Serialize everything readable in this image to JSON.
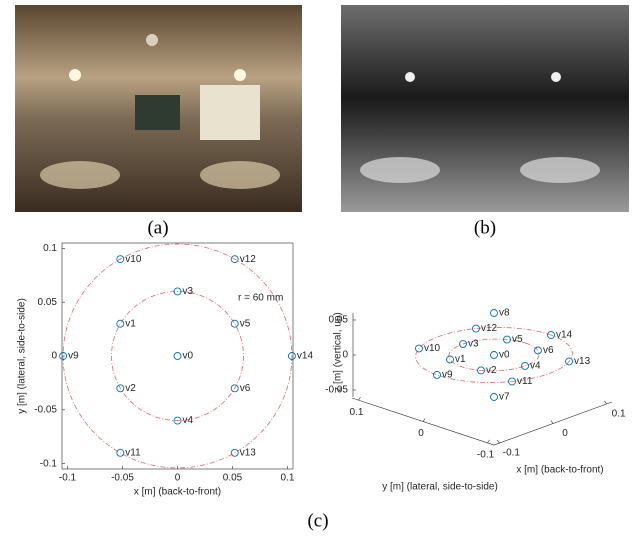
{
  "figure": {
    "panels": [
      {
        "label": "(a)"
      },
      {
        "label": "(b)"
      }
    ],
    "caption": "(c)"
  },
  "chart_data": [
    {
      "type": "scatter",
      "xlabel": "x [m] (back-to-front)",
      "ylabel": "y [m] (lateral, side-to-side)",
      "annotation": "r = 60 mm",
      "x": [
        0,
        -0.052,
        -0.052,
        0,
        0,
        0.052,
        0.052,
        -0.104,
        -0.052,
        -0.052,
        0.052,
        0.052,
        0.104
      ],
      "y": [
        0,
        0.03,
        -0.03,
        0.06,
        -0.06,
        0.03,
        -0.03,
        0,
        0.09,
        -0.09,
        0.09,
        -0.09,
        0
      ],
      "point_labels": [
        "v0",
        "v1",
        "v2",
        "v3",
        "v4",
        "v5",
        "v6",
        "v9",
        "v10",
        "v11",
        "v12",
        "v13",
        "v14"
      ],
      "color": "#0072bd",
      "circle_radii": [
        0.06,
        0.104
      ],
      "circle_color": "#e06666",
      "xlim": [
        -0.105,
        0.105
      ],
      "ylim": [
        -0.105,
        0.105
      ],
      "xticks": [
        -0.1,
        -0.05,
        0,
        0.05,
        0.1
      ],
      "yticks": [
        -0.1,
        -0.05,
        0,
        0.05,
        0.1
      ]
    },
    {
      "type": "scatter3d",
      "xlabel": "x [m] (back-to-front)",
      "ylabel": "y [m] (lateral, side-to-side)",
      "zlabel": "z [m] (vertical, up)",
      "x": [
        0,
        -0.052,
        -0.052,
        0,
        0,
        0.052,
        0.052,
        0,
        0,
        -0.104,
        -0.052,
        -0.052,
        0.052,
        0.052,
        0.104
      ],
      "y": [
        0,
        0.03,
        -0.03,
        0.06,
        -0.06,
        0.03,
        -0.03,
        0,
        0,
        0,
        0.09,
        -0.09,
        0.09,
        -0.09,
        0
      ],
      "z": [
        0,
        0,
        0,
        0,
        0,
        0,
        0,
        -0.06,
        0.06,
        0,
        0,
        0,
        0,
        0,
        0
      ],
      "point_labels": [
        "v0",
        "v1",
        "v2",
        "v3",
        "v4",
        "v5",
        "v6",
        "v7",
        "v8",
        "v9",
        "v10",
        "v11",
        "v12",
        "v13",
        "v14"
      ],
      "color": "#0072bd",
      "circle_radii": [
        0.06,
        0.104
      ],
      "circle_color": "#e06666",
      "xlim": [
        -0.11,
        0.11
      ],
      "ylim": [
        -0.11,
        0.11
      ],
      "zlim": [
        -0.06,
        0.06
      ],
      "xticks": [
        -0.1,
        0,
        0.1
      ],
      "yticks": [
        -0.1,
        0,
        0.1
      ],
      "zticks": [
        -0.05,
        0,
        0.05
      ]
    }
  ]
}
